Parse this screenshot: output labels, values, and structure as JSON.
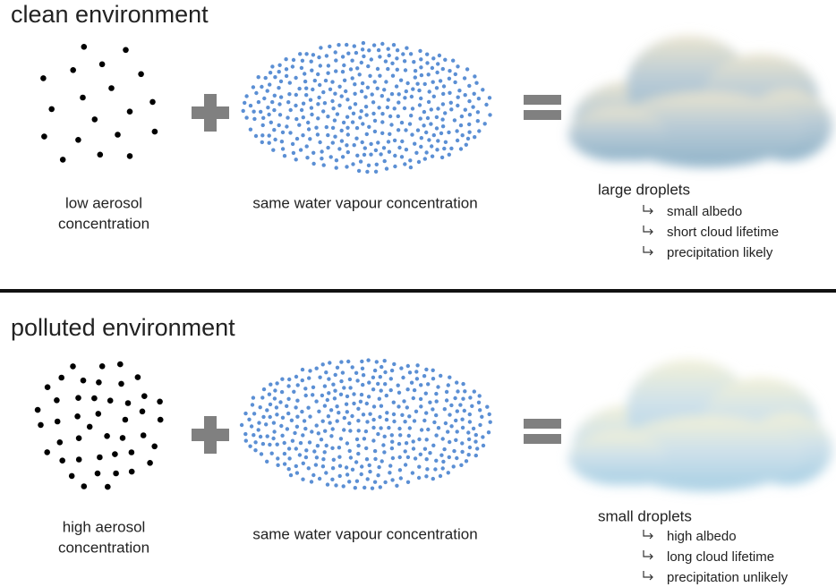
{
  "panels": [
    {
      "title": "clean environment",
      "aerosol_label": [
        "low aerosol",
        "concentration"
      ],
      "vapour_label": "same water vapour concentration",
      "result": {
        "title": "large droplets",
        "effects": [
          "small albedo",
          "short cloud lifetime",
          "precipitation likely"
        ]
      }
    },
    {
      "title": "polluted environment",
      "aerosol_label": [
        "high aerosol",
        "concentration"
      ],
      "vapour_label": "same water vapour concentration",
      "result": {
        "title": "small droplets",
        "effects": [
          "high albedo",
          "long cloud lifetime",
          "precipitation unlikely"
        ]
      }
    }
  ]
}
